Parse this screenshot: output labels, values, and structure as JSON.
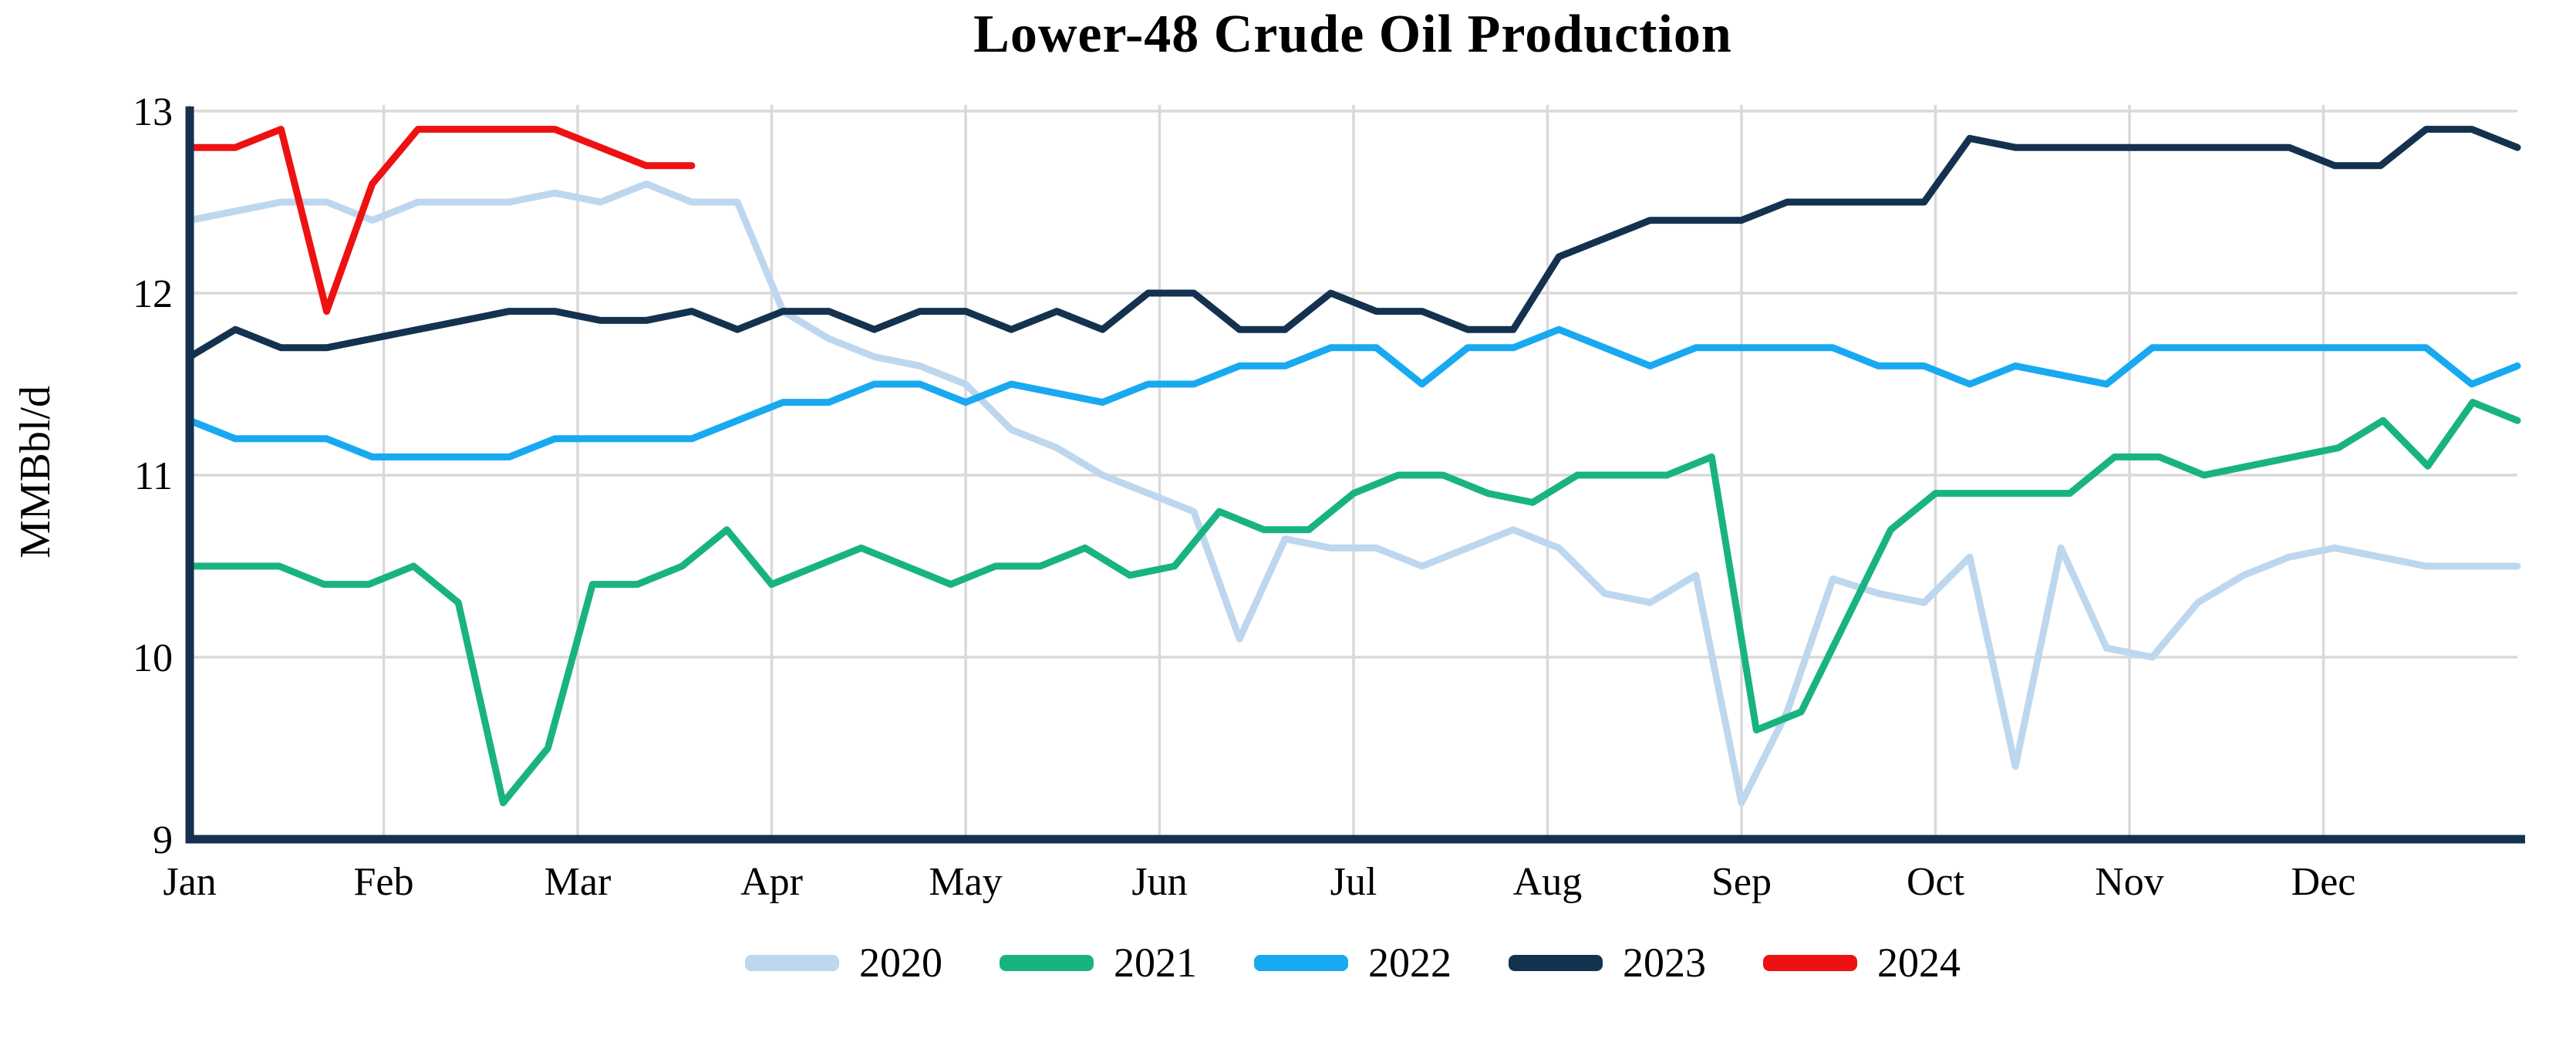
{
  "chart_data": {
    "type": "line",
    "title": "Lower-48 Crude Oil Production",
    "xlabel": "",
    "ylabel": "MMBbl/d",
    "x_tick_labels": [
      "Jan",
      "Feb",
      "Mar",
      "Apr",
      "May",
      "Jun",
      "Jul",
      "Aug",
      "Sep",
      "Oct",
      "Nov",
      "Dec"
    ],
    "y_ticks": [
      9,
      10,
      11,
      12,
      13
    ],
    "ylim": [
      9,
      13
    ],
    "grid": true,
    "legend_position": "bottom",
    "x_unit": "weekly",
    "background_color": "#FFFFFF",
    "grid_color": "#D9D9D9",
    "axis_color": "#14324F",
    "text_color": "#000000",
    "series": [
      {
        "name": "2020",
        "color": "#BDD7EE",
        "weeks_in_year": 52,
        "values": [
          12.4,
          12.45,
          12.5,
          12.5,
          12.4,
          12.5,
          12.5,
          12.5,
          12.55,
          12.5,
          12.6,
          12.5,
          12.5,
          11.9,
          11.75,
          11.65,
          11.6,
          11.5,
          11.25,
          11.15,
          11.0,
          10.9,
          10.8,
          10.1,
          10.65,
          10.6,
          10.6,
          10.5,
          10.6,
          10.7,
          10.6,
          10.35,
          10.3,
          10.45,
          9.2,
          9.7,
          10.43,
          10.35,
          10.3,
          10.55,
          9.4,
          10.6,
          10.05,
          10.0,
          10.3,
          10.45,
          10.55,
          10.6,
          10.55,
          10.5,
          10.5,
          10.5
        ]
      },
      {
        "name": "2021",
        "color": "#19B382",
        "weeks_in_year": 53,
        "values": [
          10.5,
          10.5,
          10.5,
          10.4,
          10.4,
          10.5,
          10.3,
          9.2,
          9.5,
          10.4,
          10.4,
          10.5,
          10.7,
          10.4,
          10.5,
          10.6,
          10.5,
          10.4,
          10.5,
          10.5,
          10.6,
          10.45,
          10.5,
          10.8,
          10.7,
          10.7,
          10.9,
          11.0,
          11.0,
          10.9,
          10.85,
          11.0,
          11.0,
          11.0,
          11.1,
          9.6,
          9.7,
          10.2,
          10.7,
          10.9,
          10.9,
          10.9,
          10.9,
          11.1,
          11.1,
          11.0,
          11.05,
          11.1,
          11.15,
          11.3,
          11.05,
          11.4,
          11.3
        ]
      },
      {
        "name": "2022",
        "color": "#18A9F0",
        "weeks_in_year": 52,
        "values": [
          11.3,
          11.2,
          11.2,
          11.2,
          11.1,
          11.1,
          11.1,
          11.1,
          11.2,
          11.2,
          11.2,
          11.2,
          11.3,
          11.4,
          11.4,
          11.5,
          11.5,
          11.4,
          11.5,
          11.45,
          11.4,
          11.5,
          11.5,
          11.6,
          11.6,
          11.7,
          11.7,
          11.5,
          11.7,
          11.7,
          11.8,
          11.7,
          11.6,
          11.7,
          11.7,
          11.7,
          11.7,
          11.6,
          11.6,
          11.5,
          11.6,
          11.55,
          11.5,
          11.7,
          11.7,
          11.7,
          11.7,
          11.7,
          11.7,
          11.7,
          11.5,
          11.6
        ]
      },
      {
        "name": "2023",
        "color": "#14324F",
        "weeks_in_year": 52,
        "values": [
          11.65,
          11.8,
          11.7,
          11.7,
          11.75,
          11.8,
          11.85,
          11.9,
          11.9,
          11.85,
          11.85,
          11.9,
          11.8,
          11.9,
          11.9,
          11.8,
          11.9,
          11.9,
          11.8,
          11.9,
          11.8,
          12.0,
          12.0,
          11.8,
          11.8,
          12.0,
          11.9,
          11.9,
          11.8,
          11.8,
          12.2,
          12.3,
          12.4,
          12.4,
          12.4,
          12.5,
          12.5,
          12.5,
          12.5,
          12.85,
          12.8,
          12.8,
          12.8,
          12.8,
          12.8,
          12.8,
          12.8,
          12.7,
          12.7,
          12.9,
          12.9,
          12.8
        ]
      },
      {
        "name": "2024",
        "color": "#EE1112",
        "weeks_in_year": 52,
        "values": [
          12.8,
          12.8,
          12.9,
          11.9,
          12.6,
          12.9,
          12.9,
          12.9,
          12.9,
          12.8,
          12.7,
          12.7
        ]
      }
    ]
  }
}
